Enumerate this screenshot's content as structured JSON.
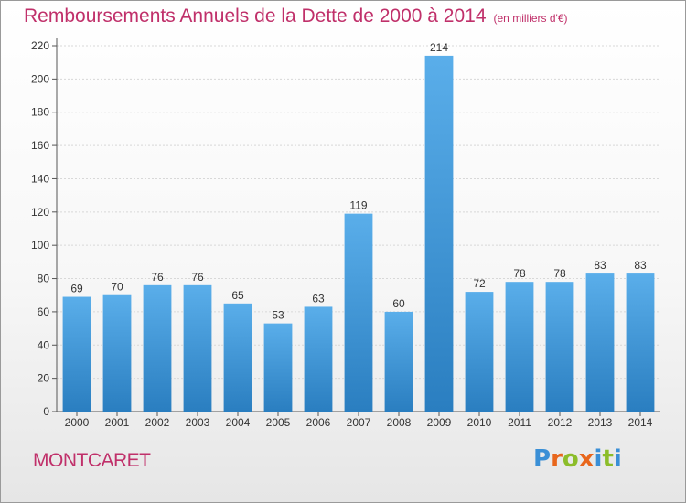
{
  "header": {
    "title": "Remboursements Annuels de la Dette de 2000 à 2014",
    "unit": "(en milliers d'€)"
  },
  "commune": "MONTCARET",
  "logo": {
    "text": "Proxiti"
  },
  "colors": {
    "bar_top": "#5aaeea",
    "bar_bottom": "#2a7ec0",
    "title": "#c0306a"
  },
  "chart_data": {
    "type": "bar",
    "title": "Remboursements Annuels de la Dette de 2000 à 2014",
    "subtitle": "(en milliers d'€)",
    "categories": [
      "2000",
      "2001",
      "2002",
      "2003",
      "2004",
      "2005",
      "2006",
      "2007",
      "2008",
      "2009",
      "2010",
      "2011",
      "2012",
      "2013",
      "2014"
    ],
    "values": [
      69,
      70,
      76,
      76,
      65,
      53,
      63,
      119,
      60,
      214,
      72,
      78,
      78,
      83,
      83
    ],
    "ylim": [
      0,
      220
    ],
    "yticks": [
      0,
      20,
      40,
      60,
      80,
      100,
      120,
      140,
      160,
      180,
      200,
      220
    ],
    "grid": true,
    "legend": "none"
  }
}
